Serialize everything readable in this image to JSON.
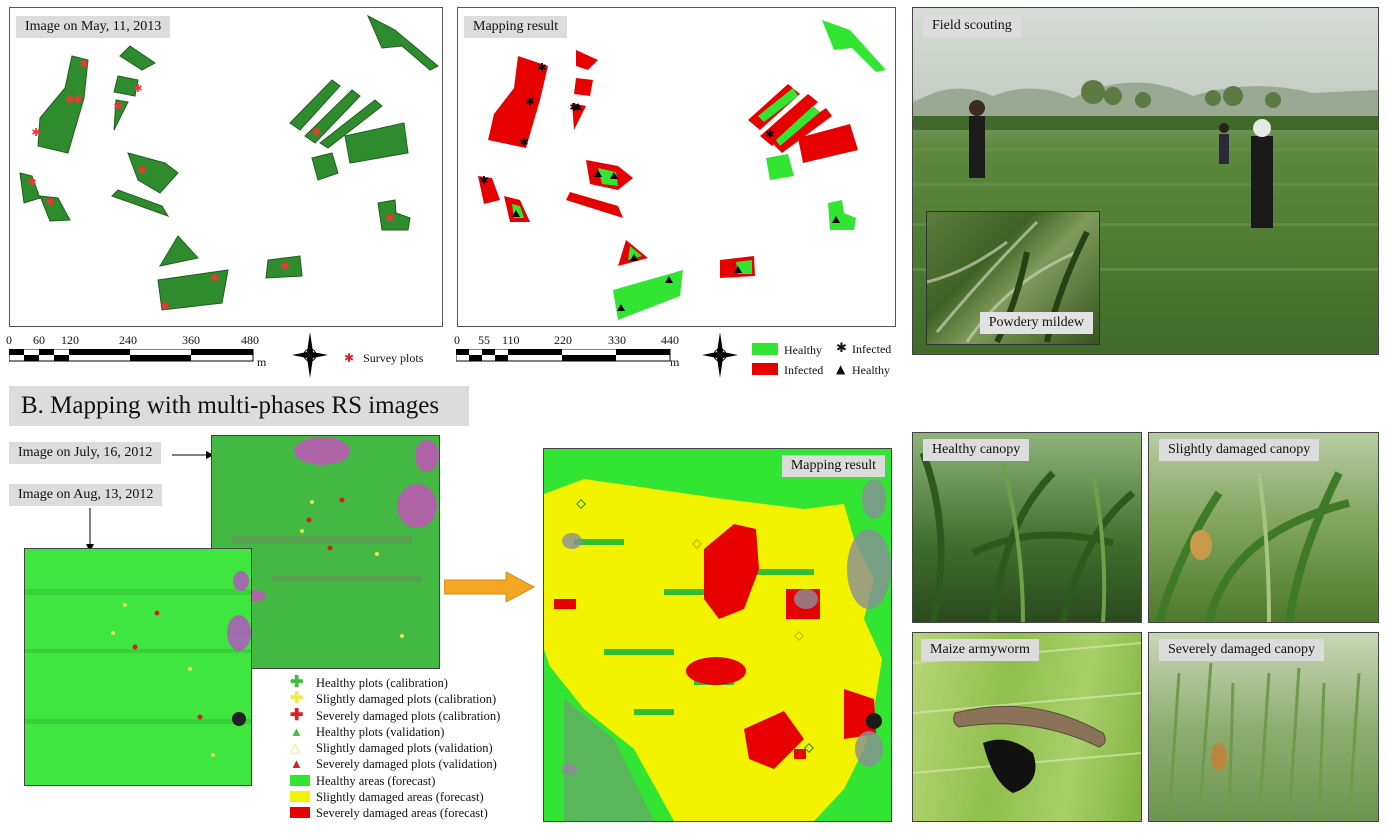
{
  "section_b_title": "B. Mapping with multi-phases RS images",
  "panel_a1": {
    "title": "Image on May, 11, 2013",
    "scale_labels": [
      "0",
      "60",
      "120",
      "240",
      "360",
      "480"
    ],
    "scale_unit": "m",
    "legend_label": "Survey plots"
  },
  "panel_a2": {
    "title": "Mapping result",
    "scale_labels": [
      "0",
      "55",
      "110",
      "220",
      "330",
      "440"
    ],
    "scale_unit": "m",
    "legend": {
      "healthy_area": "Healthy",
      "infected_area": "Infected",
      "infected_point": "Infected",
      "healthy_point": "Healthy"
    }
  },
  "panel_a3": {
    "title": "Field scouting",
    "inset_label": "Powdery mildew"
  },
  "panel_b_images": {
    "label_1": "Image on July, 16, 2012",
    "label_2": "Image on Aug, 13, 2012"
  },
  "panel_b_result": {
    "title": "Mapping result"
  },
  "panel_b_legend": [
    {
      "label": "Healthy plots (calibration)",
      "symbol": "cross",
      "color": "#3fbf3f"
    },
    {
      "label": "Slightly damaged plots (calibration)",
      "symbol": "cross",
      "color": "#f3e84a"
    },
    {
      "label": "Severely damaged plots (calibration)",
      "symbol": "cross",
      "color": "#d61f1f"
    },
    {
      "label": "Healthy plots (validation)",
      "symbol": "triangle",
      "color": "#3fbf3f"
    },
    {
      "label": "Slightly damaged plots (validation)",
      "symbol": "triangle",
      "color": "#f3e84a"
    },
    {
      "label": "Severely damaged plots (validation)",
      "symbol": "triangle",
      "color": "#d61f1f"
    },
    {
      "label": "Healthy areas (forecast)",
      "symbol": "rect",
      "color": "#33e533"
    },
    {
      "label": "Slightly damaged areas (forecast)",
      "symbol": "rect",
      "color": "#f3f300"
    },
    {
      "label": "Severely damaged areas (forecast)",
      "symbol": "rect",
      "color": "#e60000"
    }
  ],
  "photos": {
    "healthy": "Healthy canopy",
    "slightly": "Slightly damaged canopy",
    "armyworm": "Maize armyworm",
    "severely": "Severely damaged canopy"
  },
  "colors": {
    "field_green": "#2e8b2e",
    "healthy_green": "#33e533",
    "infected_red": "#e60000",
    "slight_yellow": "#f3f300",
    "label_bg": "#dcdcdc"
  },
  "icons": {
    "compass": "north-arrow-compass-icon",
    "survey": "red-asterisk-icon",
    "infected_point": "black-asterisk-icon",
    "healthy_point": "black-triangle-icon",
    "arrow": "orange-right-arrow-icon"
  }
}
